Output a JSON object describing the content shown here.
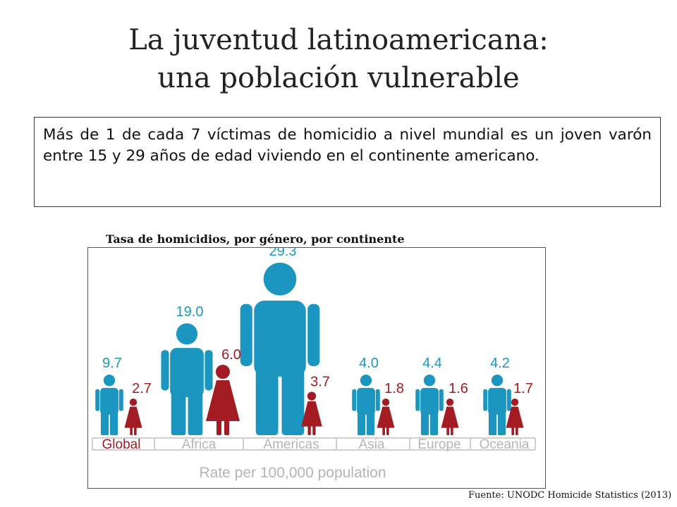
{
  "slide": {
    "title_line1": "La juventud latinoamericana:",
    "title_line2": "una población vulnerable",
    "body_text": "Más de 1 de cada 7 víctimas de homicidio a nivel mundial es un joven varón entre 15 y 29 años de edad viviendo en el continente americano.",
    "source": "Fuente: UNODC Homicide Statistics (2013)"
  },
  "colors": {
    "male": "#1a96c0",
    "female": "#a31c24",
    "axis_text": "#b5b5b5",
    "global_label": "#a31c24"
  },
  "chart_data": {
    "type": "bar",
    "title": "Tasa de homicidios, por género, por continente",
    "xlabel": "Rate per 100,000 population",
    "categories": [
      "Global",
      "Africa",
      "Americas",
      "Asia",
      "Europe",
      "Oceania"
    ],
    "series": [
      {
        "values": [
          9.7,
          19.0,
          29.3,
          4.0,
          4.4,
          4.2
        ]
      },
      {
        "values": [
          2.7,
          6.0,
          3.7,
          1.8,
          1.6,
          1.7
        ]
      }
    ],
    "value_labels_male": [
      "9.7",
      "19.0",
      "29.3",
      "4.0",
      "4.4",
      "4.2"
    ],
    "value_labels_female": [
      "2.7",
      "6.0",
      "3.7",
      "1.8",
      "1.6",
      "1.7"
    ]
  }
}
